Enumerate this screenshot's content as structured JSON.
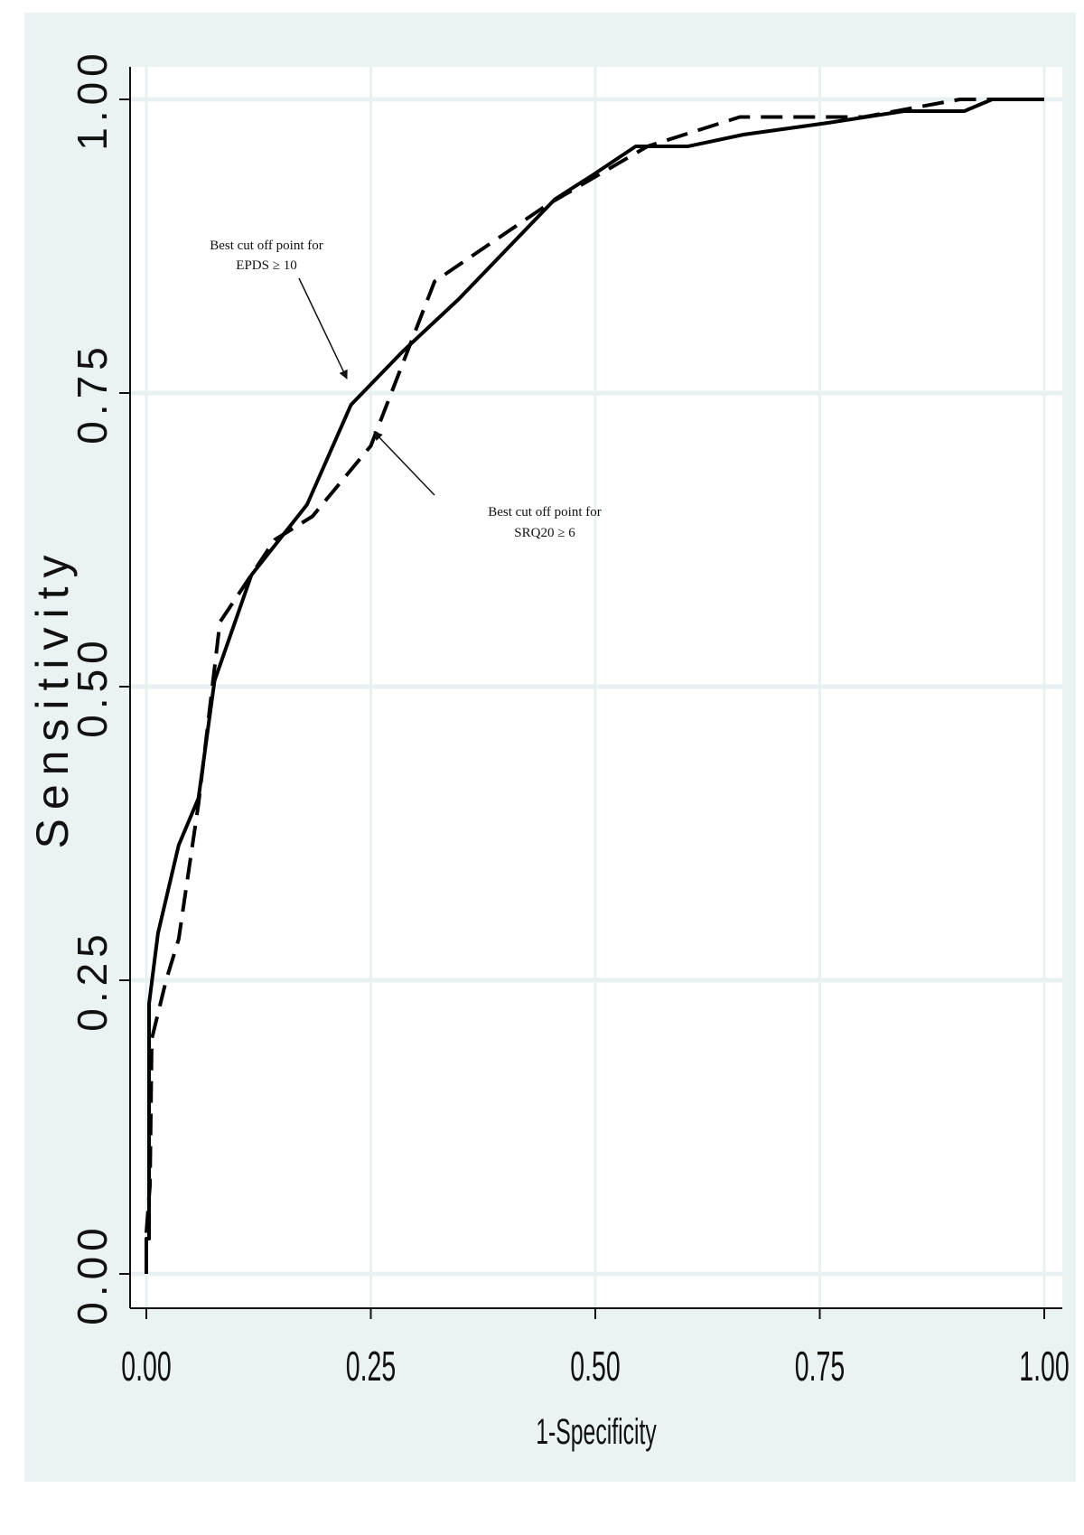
{
  "chart_data": {
    "type": "line",
    "title": "",
    "xlabel": "1-Specificity",
    "ylabel": "Sensitivity",
    "xlim": [
      0,
      1
    ],
    "ylim": [
      0,
      1
    ],
    "x_ticks": [
      "0.00",
      "0.25",
      "0.50",
      "0.75",
      "1.00"
    ],
    "y_ticks": [
      "0.00",
      "0.25",
      "0.50",
      "0.75",
      "1.00"
    ],
    "grid": true,
    "series": [
      {
        "style": "solid",
        "points": [
          [
            0,
            0
          ],
          [
            0,
            0.03
          ],
          [
            0.003,
            0.03
          ],
          [
            0.003,
            0.23
          ],
          [
            0.013,
            0.29
          ],
          [
            0.036,
            0.365
          ],
          [
            0.058,
            0.405
          ],
          [
            0.076,
            0.505
          ],
          [
            0.117,
            0.595
          ],
          [
            0.179,
            0.655
          ],
          [
            0.228,
            0.74
          ],
          [
            0.285,
            0.785
          ],
          [
            0.348,
            0.83
          ],
          [
            0.455,
            0.915
          ],
          [
            0.496,
            0.935
          ],
          [
            0.545,
            0.96
          ],
          [
            0.603,
            0.96
          ],
          [
            0.665,
            0.97
          ],
          [
            0.759,
            0.98
          ],
          [
            0.844,
            0.99
          ],
          [
            0.911,
            0.99
          ],
          [
            0.942,
            1.0
          ],
          [
            1,
            1
          ]
        ]
      },
      {
        "style": "dashed",
        "points": [
          [
            0,
            0.035
          ],
          [
            0.004,
            0.075
          ],
          [
            0.006,
            0.2
          ],
          [
            0.022,
            0.25
          ],
          [
            0.036,
            0.285
          ],
          [
            0.058,
            0.4
          ],
          [
            0.082,
            0.555
          ],
          [
            0.143,
            0.625
          ],
          [
            0.185,
            0.645
          ],
          [
            0.25,
            0.705
          ],
          [
            0.321,
            0.845
          ],
          [
            0.446,
            0.91
          ],
          [
            0.558,
            0.96
          ],
          [
            0.661,
            0.985
          ],
          [
            0.799,
            0.985
          ],
          [
            0.906,
            1.0
          ],
          [
            1,
            1
          ]
        ]
      }
    ],
    "annotations": [
      {
        "lines": [
          "Best cut off point for",
          "EPDS  ≥ 10"
        ]
      },
      {
        "lines": [
          "Best cut off point for",
          "SRQ20 ≥ 6"
        ]
      }
    ]
  }
}
